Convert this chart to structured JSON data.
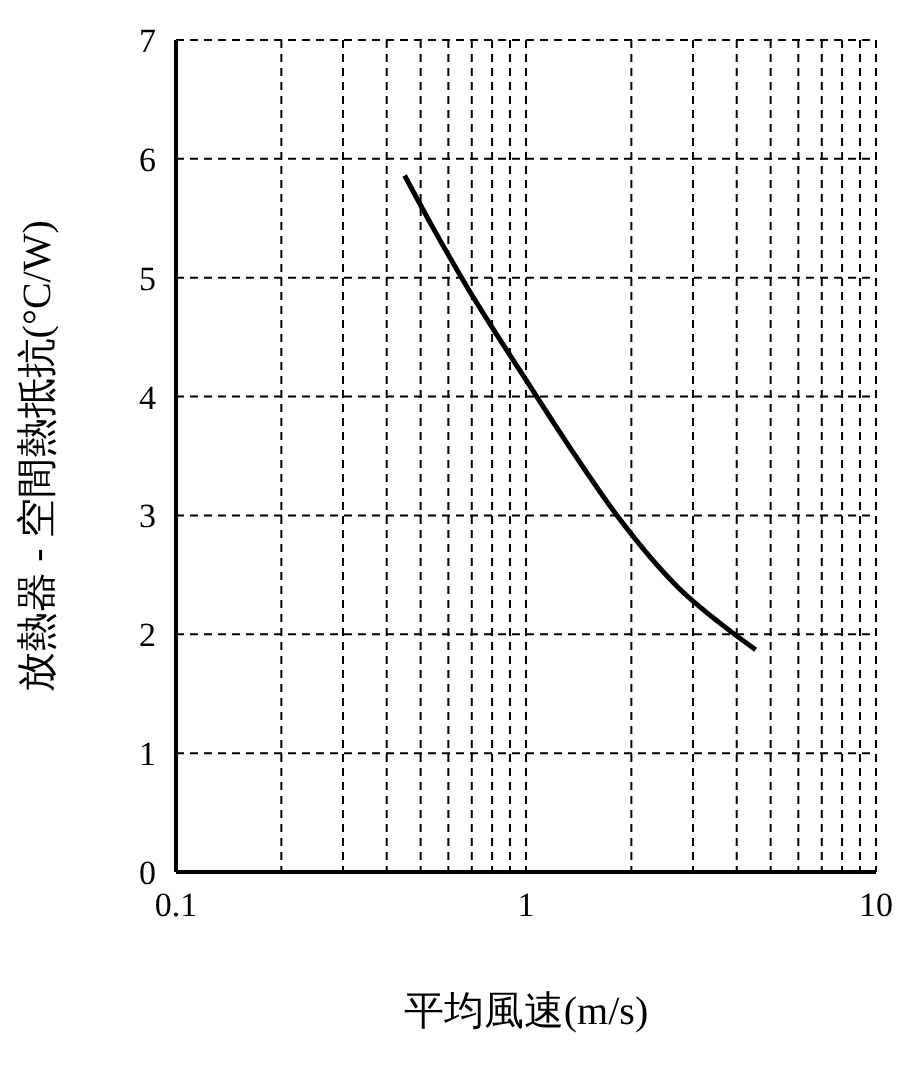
{
  "chart_data": {
    "type": "line",
    "xlabel": "平均風速(m/s)",
    "ylabel": "放熱器 - 空間熱抵抗(°C/W)",
    "log": "x",
    "xlim": [
      0.1,
      10
    ],
    "ylim": [
      0,
      7
    ],
    "xticks": [
      0.1,
      {
        "value": 0.2,
        "label": null
      },
      {
        "value": 0.3,
        "label": null
      },
      {
        "value": 0.4,
        "label": null
      },
      {
        "value": 0.5,
        "label": null
      },
      {
        "value": 0.6,
        "label": null
      },
      {
        "value": 0.7,
        "label": null
      },
      {
        "value": 0.8,
        "label": null
      },
      {
        "value": 0.9,
        "label": null
      },
      1,
      {
        "value": 2,
        "label": null
      },
      {
        "value": 3,
        "label": null
      },
      {
        "value": 4,
        "label": null
      },
      {
        "value": 5,
        "label": null
      },
      {
        "value": 6,
        "label": null
      },
      {
        "value": 7,
        "label": null
      },
      {
        "value": 8,
        "label": null
      },
      {
        "value": 9,
        "label": null
      },
      10
    ],
    "yticks": [
      0,
      1,
      2,
      3,
      4,
      5,
      6,
      7
    ],
    "grid": true,
    "marker": "none",
    "line_style": "solid",
    "legend": false,
    "series": [
      {
        "color": "#000000",
        "x": [
          0.45,
          0.54,
          0.67,
          1.0,
          1.35,
          1.84,
          2.73,
          3.56,
          4.53
        ],
        "values": [
          5.86,
          5.43,
          4.95,
          4.14,
          3.55,
          2.98,
          2.39,
          2.1,
          1.87
        ]
      }
    ]
  }
}
